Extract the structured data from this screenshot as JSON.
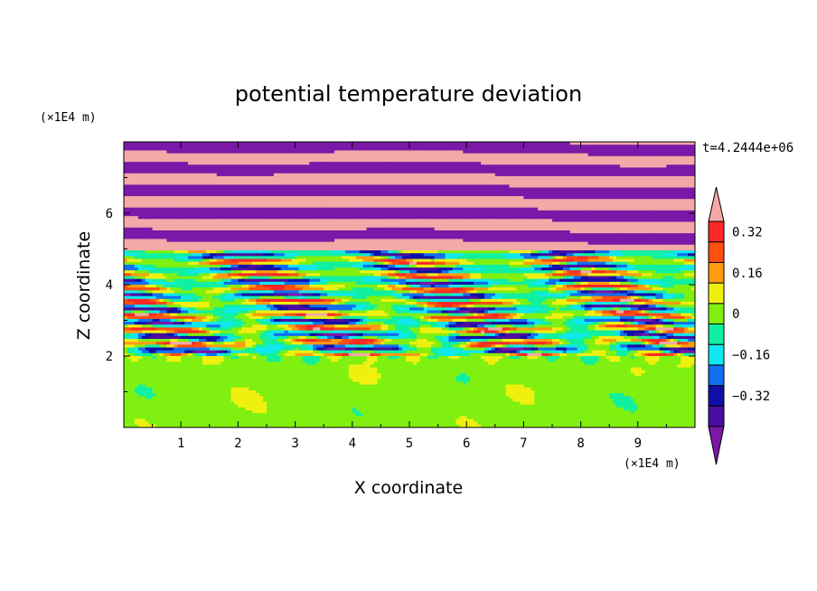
{
  "chart_data": {
    "type": "heatmap",
    "title": "potential temperature deviation",
    "xlabel": "X coordinate",
    "ylabel": "Z coordinate",
    "x_unit": "(×1E4 m)",
    "y_unit": "(×1E4 m)",
    "time_label": "t=4.2444e+06",
    "xlim": [
      0,
      10
    ],
    "ylim": [
      0,
      8
    ],
    "x_ticks": [
      "1",
      "2",
      "3",
      "4",
      "5",
      "6",
      "7",
      "8",
      "9"
    ],
    "y_ticks": [
      "2",
      "4",
      "6"
    ],
    "colorbar": {
      "levels": [
        -0.4,
        -0.32,
        -0.24,
        -0.16,
        -0.08,
        0,
        0.08,
        0.16,
        0.24,
        0.32,
        0.4
      ],
      "tick_labels": [
        "0.32",
        "0.16",
        "0",
        "−0.16",
        "−0.32"
      ],
      "colors": [
        "#7a18a8",
        "#4a0ea0",
        "#1010a8",
        "#1070f0",
        "#10e8f0",
        "#10f0a0",
        "#80f010",
        "#f0f010",
        "#ff9c10",
        "#ff5010",
        "#ff2828",
        "#f4a8a8"
      ],
      "extend": "both"
    },
    "regions": [
      {
        "z_range": [
          0,
          2
        ],
        "pattern": "weak",
        "values": [
          0,
          0.08
        ]
      },
      {
        "z_range": [
          2,
          5
        ],
        "pattern": "mixed-layers",
        "values": [
          -0.4,
          0.4
        ]
      },
      {
        "z_range": [
          5,
          8
        ],
        "pattern": "alternating-bands",
        "values": [
          -0.4,
          0.4
        ]
      }
    ]
  }
}
